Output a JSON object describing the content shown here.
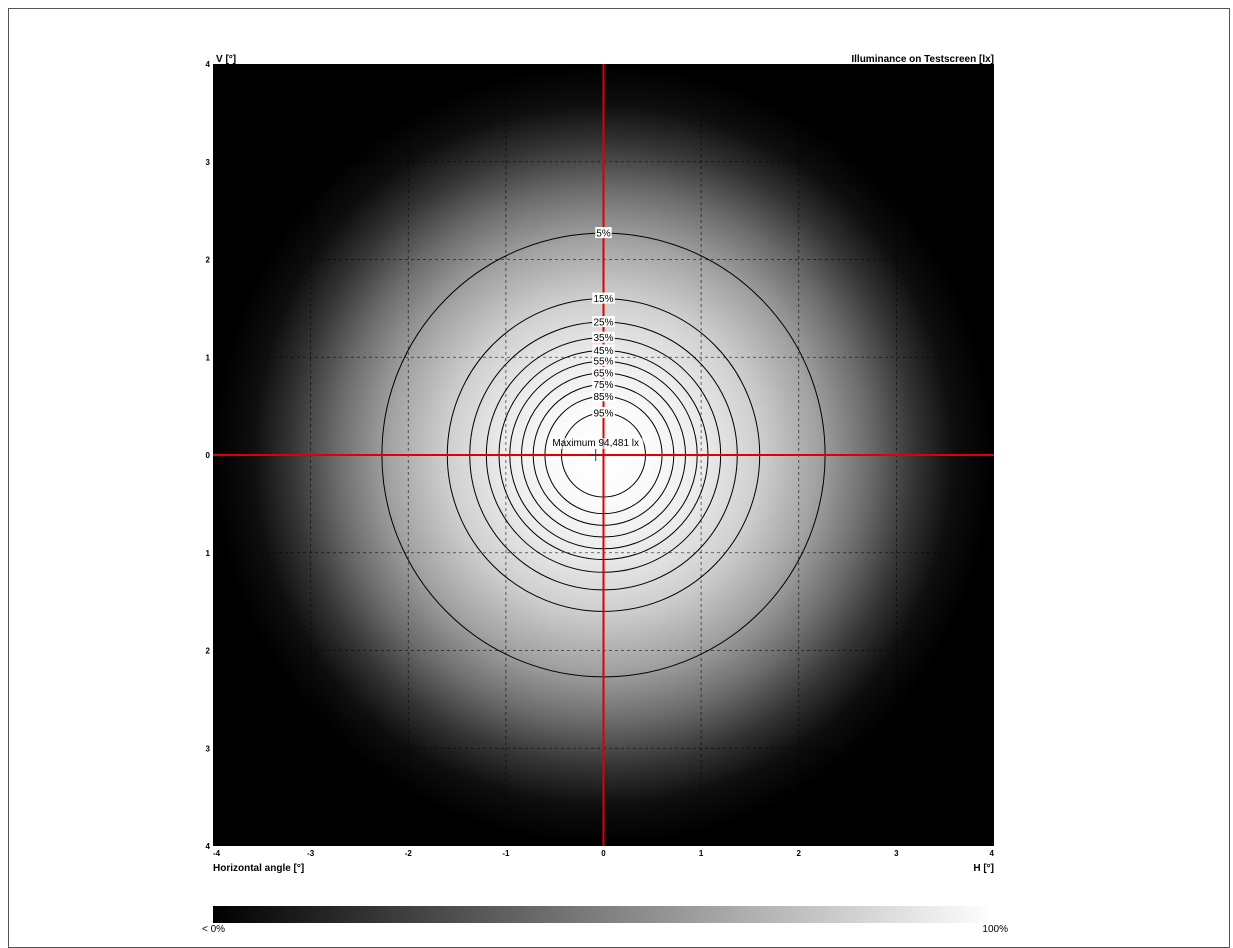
{
  "chart_data": {
    "type": "heatmap",
    "title": "Illuminance on Testscreen [lx]",
    "ylabel_top": "V [°]",
    "xlabel_left": "Horizontal angle [°]",
    "xlabel_right": "H [°]",
    "xlim": [
      -4,
      4
    ],
    "ylim": [
      -4,
      4
    ],
    "x_ticks": [
      "-4",
      "-3",
      "-2",
      "-1",
      "0",
      "1",
      "2",
      "3",
      "4"
    ],
    "y_ticks": [
      "4",
      "3",
      "2",
      "1",
      "0",
      "1",
      "2",
      "3",
      "4"
    ],
    "y_tick_values": [
      4,
      3,
      2,
      1,
      0,
      -1,
      -2,
      -3,
      -4
    ],
    "x_tick_values": [
      -4,
      -3,
      -2,
      -1,
      0,
      1,
      2,
      3,
      4
    ],
    "grid": true,
    "maximum_label": "Maximum 94,481 lx",
    "maximum_point": [
      -0.08,
      0
    ],
    "crosshair_color": "#e00000",
    "contours": [
      {
        "label": "5%",
        "level": 5,
        "radius_h": 2.27,
        "radius_v_up": 2.27,
        "radius_v_down": 2.27
      },
      {
        "label": "15%",
        "level": 15,
        "radius_h": 1.6,
        "radius_v_up": 1.6,
        "radius_v_down": 1.6
      },
      {
        "label": "25%",
        "level": 25,
        "radius_h": 1.37,
        "radius_v_up": 1.36,
        "radius_v_down": 1.38
      },
      {
        "label": "35%",
        "level": 35,
        "radius_h": 1.2,
        "radius_v_up": 1.2,
        "radius_v_down": 1.2
      },
      {
        "label": "45%",
        "level": 45,
        "radius_h": 1.07,
        "radius_v_up": 1.07,
        "radius_v_down": 1.07
      },
      {
        "label": "55%",
        "level": 55,
        "radius_h": 0.96,
        "radius_v_up": 0.96,
        "radius_v_down": 0.96
      },
      {
        "label": "65%",
        "level": 65,
        "radius_h": 0.84,
        "radius_v_up": 0.84,
        "radius_v_down": 0.84
      },
      {
        "label": "75%",
        "level": 75,
        "radius_h": 0.72,
        "radius_v_up": 0.72,
        "radius_v_down": 0.72
      },
      {
        "label": "85%",
        "level": 85,
        "radius_h": 0.6,
        "radius_v_up": 0.6,
        "radius_v_down": 0.6
      },
      {
        "label": "95%",
        "level": 95,
        "radius_h": 0.43,
        "radius_v_up": 0.43,
        "radius_v_down": 0.43
      }
    ],
    "colorbar": {
      "min_label": "< 0%",
      "max_label": "100%",
      "min_color": "#000000",
      "max_color": "#ffffff"
    }
  }
}
